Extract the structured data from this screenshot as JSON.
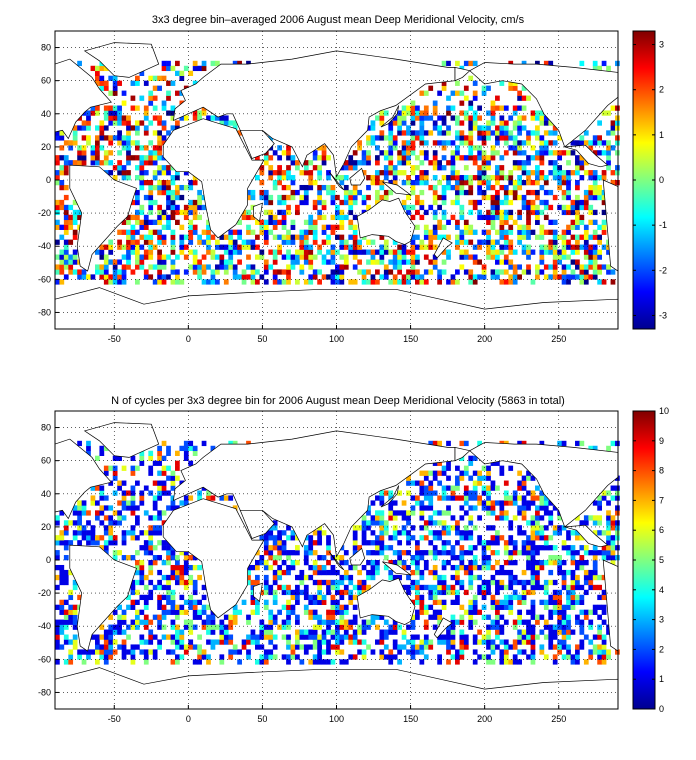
{
  "chart_data": [
    {
      "type": "heatmap",
      "title": "3x3 degree bin–averaged 2006 August mean Deep Meridional Velocity, cm/s",
      "xlim": [
        -90,
        290
      ],
      "ylim": [
        -90,
        90
      ],
      "xticks": [
        "-50",
        "0",
        "50",
        "100",
        "150",
        "200",
        "250"
      ],
      "xtick_values": [
        -50,
        0,
        50,
        100,
        150,
        200,
        250
      ],
      "yticks": [
        "80",
        "60",
        "40",
        "20",
        "0",
        "-20",
        "-40",
        "-60",
        "-80"
      ],
      "ytick_values": [
        80,
        60,
        40,
        20,
        0,
        -20,
        -40,
        -60,
        -80
      ],
      "colorbar": {
        "min": -3.3,
        "max": 3.3,
        "ticks": [
          "3",
          "2",
          "1",
          "0",
          "-1",
          "-2",
          "-3"
        ],
        "tick_values": [
          3,
          2,
          1,
          0,
          -1,
          -2,
          -3
        ],
        "colormap": "jet"
      },
      "bin_size_deg": 3,
      "grid": true
    },
    {
      "type": "heatmap",
      "title": "N of cycles per 3x3 degree bin for 2006 August mean Deep Meridional Velocity (5863 in total)",
      "xlim": [
        -90,
        290
      ],
      "ylim": [
        -90,
        90
      ],
      "xticks": [
        "-50",
        "0",
        "50",
        "100",
        "150",
        "200",
        "250"
      ],
      "xtick_values": [
        -50,
        0,
        50,
        100,
        150,
        200,
        250
      ],
      "yticks": [
        "80",
        "60",
        "40",
        "20",
        "0",
        "-20",
        "-40",
        "-60",
        "-80"
      ],
      "ytick_values": [
        80,
        60,
        40,
        20,
        0,
        -20,
        -40,
        -60,
        -80
      ],
      "colorbar": {
        "min": 0,
        "max": 10,
        "ticks": [
          "10",
          "9",
          "8",
          "7",
          "6",
          "5",
          "4",
          "3",
          "2",
          "1",
          "0"
        ],
        "tick_values": [
          10,
          9,
          8,
          7,
          6,
          5,
          4,
          3,
          2,
          1,
          0
        ],
        "colormap": "jet"
      },
      "bin_size_deg": 3,
      "grid": true
    }
  ]
}
